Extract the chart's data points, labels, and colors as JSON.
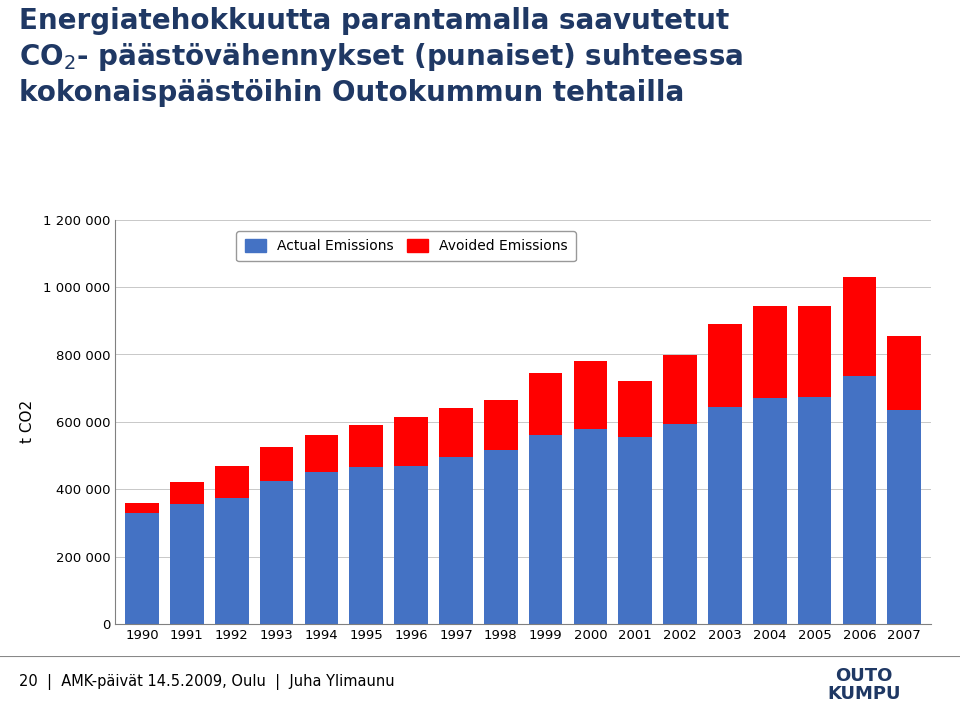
{
  "years": [
    1990,
    1991,
    1992,
    1993,
    1994,
    1995,
    1996,
    1997,
    1998,
    1999,
    2000,
    2001,
    2002,
    2003,
    2004,
    2005,
    2006,
    2007
  ],
  "actual_emissions": [
    330000,
    355000,
    375000,
    425000,
    450000,
    465000,
    470000,
    495000,
    515000,
    560000,
    580000,
    555000,
    595000,
    645000,
    670000,
    675000,
    735000,
    635000
  ],
  "avoided_emissions": [
    30000,
    65000,
    95000,
    100000,
    110000,
    125000,
    145000,
    145000,
    150000,
    185000,
    200000,
    165000,
    205000,
    245000,
    275000,
    270000,
    295000,
    220000
  ],
  "actual_color": "#4472C4",
  "avoided_color": "#FF0000",
  "ylabel": "t CO2",
  "ylim": [
    0,
    1200000
  ],
  "yticks": [
    0,
    200000,
    400000,
    600000,
    800000,
    1000000,
    1200000
  ],
  "ytick_labels": [
    "0",
    "200 000",
    "400 000",
    "600 000",
    "800 000",
    "1 000 000",
    "1 200 000"
  ],
  "legend_actual": "Actual Emissions",
  "legend_avoided": "Avoided Emissions",
  "bg_color": "#FFFFFF",
  "plot_bg_color": "#FFFFFF",
  "title_color": "#1F3864",
  "footer_bg": "#C8C8C8",
  "footer_text": "20  |  AMK-päivät 14.5.2009, Oulu  |  Juha Ylimaunu",
  "logo_line1": "OUTO",
  "logo_line2": "KUMPU",
  "title_fontsize": 20,
  "bar_width": 0.75
}
